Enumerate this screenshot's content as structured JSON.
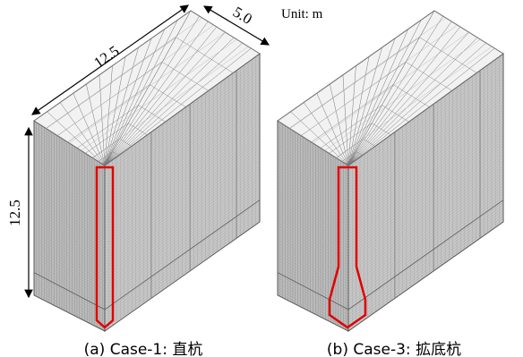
{
  "unit_label": "Unit: m",
  "dimensions": {
    "length": "12.5",
    "width": "5.0",
    "height": "12.5"
  },
  "captions": [
    "(a) Case-1: 直杭",
    "(b) Case-3: 拡底杭"
  ]
}
